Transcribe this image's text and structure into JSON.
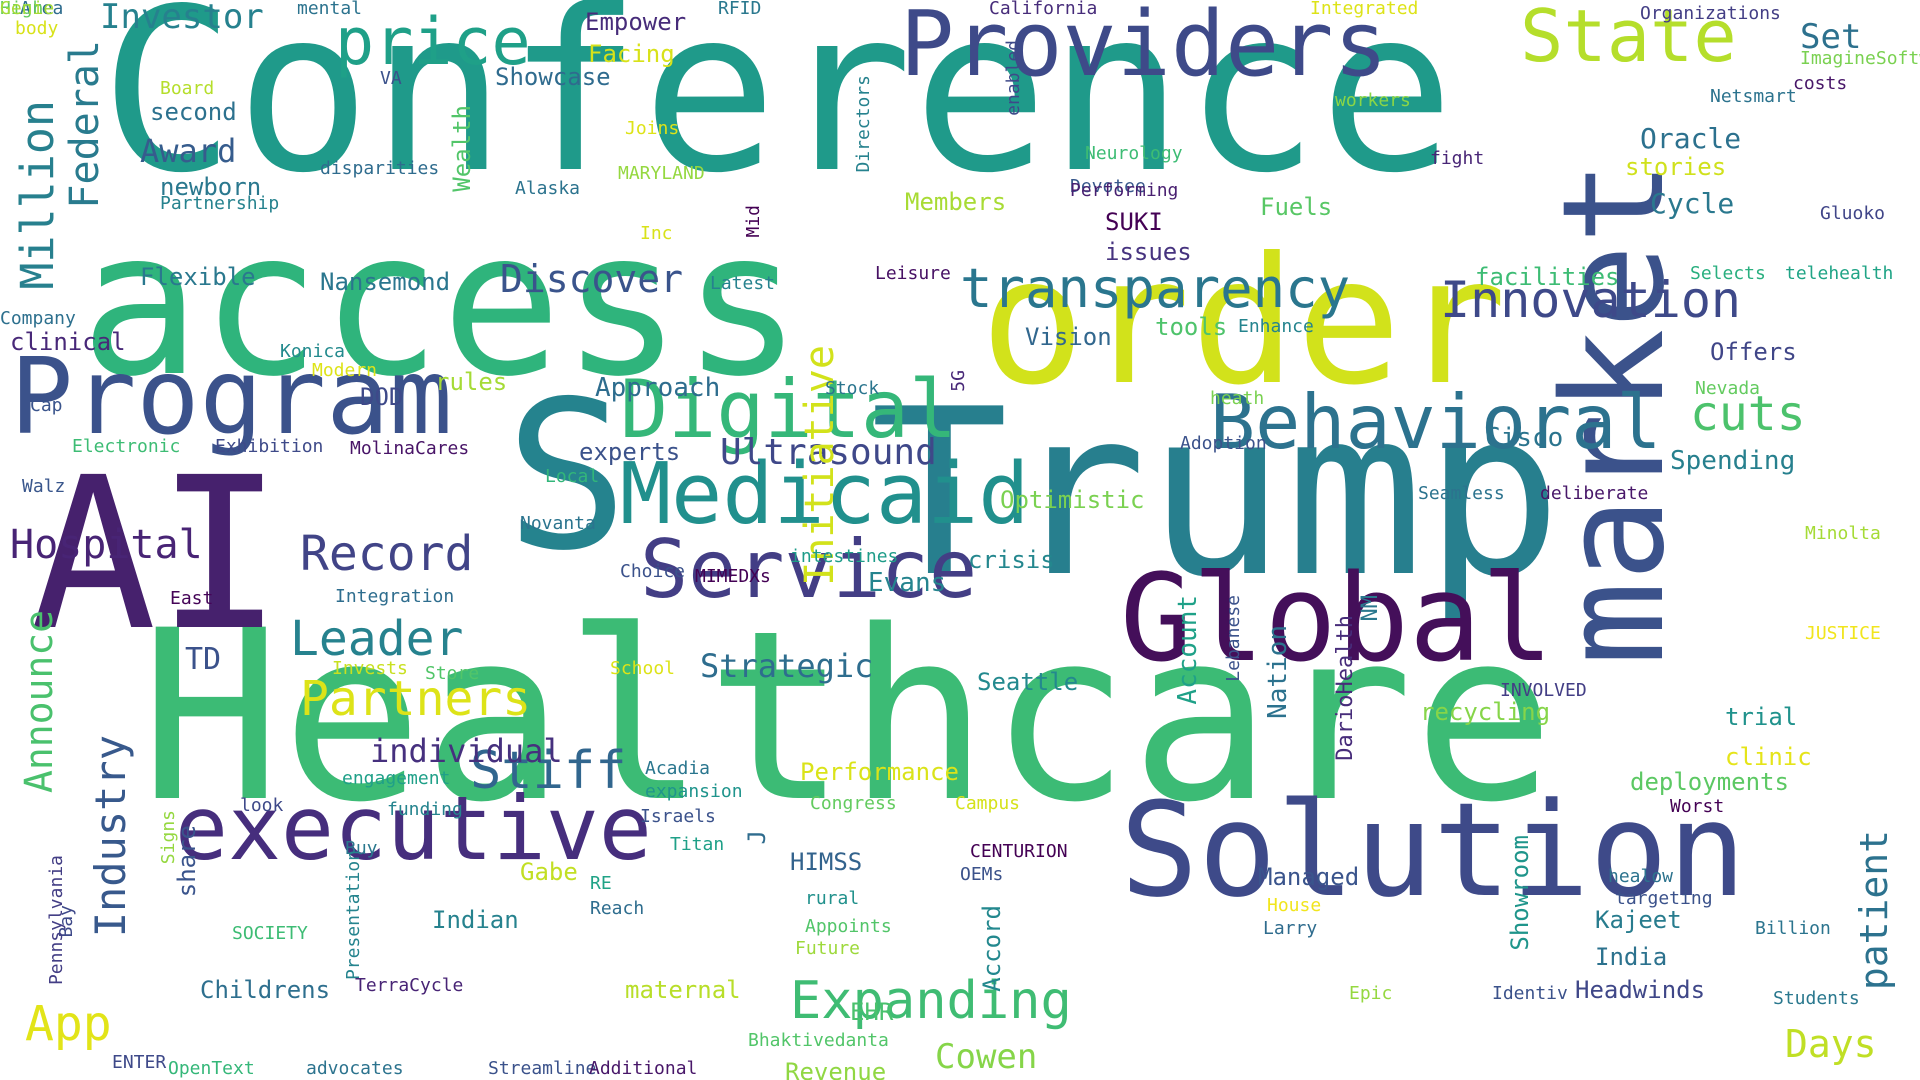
{
  "words": [
    {
      "text": "Conference",
      "color": "#1f9a8a"
    },
    {
      "text": "Healthcare",
      "color": "#3cbb75"
    },
    {
      "text": "Trump",
      "color": "#277f8e"
    },
    {
      "text": "access",
      "color": "#2fb47c"
    },
    {
      "text": "order",
      "color": "#d2e21b"
    },
    {
      "text": "AI",
      "color": "#46216d"
    },
    {
      "text": "S",
      "color": "#25838e"
    },
    {
      "text": "market",
      "color": "#3b528b"
    },
    {
      "text": "Solution",
      "color": "#3e4a89"
    },
    {
      "text": "Global",
      "color": "#440f5a"
    },
    {
      "text": "Program",
      "color": "#3b528b"
    },
    {
      "text": "Providers",
      "color": "#3e4a89"
    },
    {
      "text": "executive",
      "color": "#462e7d"
    },
    {
      "text": "Medicaid",
      "color": "#21908d"
    },
    {
      "text": "Service",
      "color": "#433e85"
    },
    {
      "text": "Digital",
      "color": "#35b779"
    },
    {
      "text": "Behavioral",
      "color": "#2c728e"
    },
    {
      "text": "State",
      "color": "#b5de2b"
    },
    {
      "text": "price",
      "color": "#1fa088"
    },
    {
      "text": "transparency",
      "color": "#2a768e"
    },
    {
      "text": "Innovation",
      "color": "#3e4989"
    },
    {
      "text": "Million",
      "color": "#27808e"
    },
    {
      "text": "Federal",
      "color": "#297b8e"
    },
    {
      "text": "Record",
      "color": "#414487"
    },
    {
      "text": "Leader",
      "color": "#26828e"
    },
    {
      "text": "Partners",
      "color": "#dde318"
    },
    {
      "text": "Expanding",
      "color": "#3fbc73"
    },
    {
      "text": "Industry",
      "color": "#38598c"
    },
    {
      "text": "Announce",
      "color": "#4ac16d"
    },
    {
      "text": "patient",
      "color": "#2c728e"
    },
    {
      "text": "Stiff",
      "color": "#31668e"
    },
    {
      "text": "Hospital",
      "color": "#482475"
    },
    {
      "text": "cuts",
      "color": "#4cc26c"
    },
    {
      "text": "Ultrasound",
      "color": "#3f4889"
    },
    {
      "text": "App",
      "color": "#e2e418"
    },
    {
      "text": "Cowen",
      "color": "#86d549"
    },
    {
      "text": "Days",
      "color": "#c0df25"
    },
    {
      "text": "Discover",
      "color": "#3a548c"
    },
    {
      "text": "Strategic",
      "color": "#2e6d8e"
    },
    {
      "text": "individual",
      "color": "#46307e"
    },
    {
      "text": "Initiative",
      "color": "#d2e21b"
    },
    {
      "text": "Investor",
      "color": "#26818e"
    },
    {
      "text": "Award",
      "color": "#365c8d"
    },
    {
      "text": "Set",
      "color": "#2d718e"
    },
    {
      "text": "Oracle",
      "color": "#2c718e"
    },
    {
      "text": "Cycle",
      "color": "#2a788e"
    },
    {
      "text": "Performance",
      "color": "#dae319"
    },
    {
      "text": "Members",
      "color": "#a8db34"
    },
    {
      "text": "Fuels",
      "color": "#58c765"
    },
    {
      "text": "Approach",
      "color": "#2e6d8e"
    },
    {
      "text": "Spending",
      "color": "#27808e"
    },
    {
      "text": "Offers",
      "color": "#404688"
    },
    {
      "text": "Cisco",
      "color": "#2b748e"
    },
    {
      "text": "Evans",
      "color": "#25848e"
    },
    {
      "text": "crisis",
      "color": "#24878e"
    },
    {
      "text": "Seattle",
      "color": "#23898e"
    },
    {
      "text": "experts",
      "color": "#3b528b"
    },
    {
      "text": "Optimistic",
      "color": "#7ad151"
    },
    {
      "text": "Headwinds",
      "color": "#3f4788"
    },
    {
      "text": "India",
      "color": "#2c728e"
    },
    {
      "text": "Kajeet",
      "color": "#287c8e"
    },
    {
      "text": "trial",
      "color": "#20928c"
    },
    {
      "text": "clinic",
      "color": "#e5e419"
    },
    {
      "text": "deployments",
      "color": "#5cc863"
    },
    {
      "text": "Managed",
      "color": "#3a548c"
    },
    {
      "text": "Indian",
      "color": "#26828e"
    },
    {
      "text": "maternal",
      "color": "#b8de29"
    },
    {
      "text": "recycling",
      "color": "#86d549"
    },
    {
      "text": "facilities",
      "color": "#3dbc74"
    },
    {
      "text": "stories",
      "color": "#d0e11c"
    },
    {
      "text": "TD",
      "color": "#3b528b"
    },
    {
      "text": "Gabe",
      "color": "#c2df23"
    },
    {
      "text": "Account",
      "color": "#1fa188"
    },
    {
      "text": "Nation",
      "color": "#2c728e"
    },
    {
      "text": "HIMSS",
      "color": "#33638d"
    },
    {
      "text": "Childrens",
      "color": "#2e6f8e"
    },
    {
      "text": "Revenue",
      "color": "#90d743"
    },
    {
      "text": "EHR",
      "color": "#4ac16d"
    },
    {
      "text": "Nansemond",
      "color": "#2a768e"
    },
    {
      "text": "Flexible",
      "color": "#2a788e"
    },
    {
      "text": "second",
      "color": "#2c718e"
    },
    {
      "text": "newborn",
      "color": "#2a788e"
    },
    {
      "text": "clinical",
      "color": "#482878"
    },
    {
      "text": "Showcase",
      "color": "#2f6b8e"
    },
    {
      "text": "Empower",
      "color": "#472c7a"
    },
    {
      "text": "Facing",
      "color": "#d8e219"
    },
    {
      "text": "Joins",
      "color": "#dde318"
    },
    {
      "text": "rules",
      "color": "#a5db36"
    },
    {
      "text": "tools",
      "color": "#4ec36b"
    },
    {
      "text": "Vision",
      "color": "#31678e"
    },
    {
      "text": "SUKI",
      "color": "#440154"
    },
    {
      "text": "issues",
      "color": "#46337f"
    },
    {
      "text": "Neurology",
      "color": "#3dbc74"
    },
    {
      "text": "Devotee",
      "color": "#38588c"
    },
    {
      "text": "Performing",
      "color": "#481f70"
    },
    {
      "text": "fight",
      "color": "#482576"
    },
    {
      "text": "Gluoko",
      "color": "#404588"
    },
    {
      "text": "Selects",
      "color": "#29af7f"
    },
    {
      "text": "telehealth",
      "color": "#20a486"
    },
    {
      "text": "DOD",
      "color": "#3e4989"
    },
    {
      "text": "Stock",
      "color": "#2b758e"
    },
    {
      "text": "5G",
      "color": "#482878"
    },
    {
      "text": "Adoption",
      "color": "#3b528b"
    },
    {
      "text": "heath",
      "color": "#7ad151"
    },
    {
      "text": "Nevada",
      "color": "#63cb5f"
    },
    {
      "text": "Seamless",
      "color": "#2c738e"
    },
    {
      "text": "deliberate",
      "color": "#481769"
    },
    {
      "text": "Minolta",
      "color": "#a5db36"
    },
    {
      "text": "JUSTICE",
      "color": "#f1e51d"
    },
    {
      "text": "Latest",
      "color": "#26828e"
    },
    {
      "text": "Leisure",
      "color": "#471164"
    },
    {
      "text": "Enhance",
      "color": "#25848e"
    },
    {
      "text": "Konica",
      "color": "#238a8d"
    },
    {
      "text": "Modern",
      "color": "#dde318"
    },
    {
      "text": "Cap",
      "color": "#3a548c"
    },
    {
      "text": "Company",
      "color": "#2d708e"
    },
    {
      "text": "Electronic",
      "color": "#3dbc74"
    },
    {
      "text": "Exhibition",
      "color": "#3e4a89"
    },
    {
      "text": "MolinaCares",
      "color": "#481467"
    },
    {
      "text": "Local",
      "color": "#32b67a"
    },
    {
      "text": "Walz",
      "color": "#39568c"
    },
    {
      "text": "Novanta",
      "color": "#2b748e"
    },
    {
      "text": "intestines",
      "color": "#1e9c89"
    },
    {
      "text": "Choice",
      "color": "#3b528b"
    },
    {
      "text": "MIMEDXs",
      "color": "#440154"
    },
    {
      "text": "Integration",
      "color": "#2e6d8e"
    },
    {
      "text": "East",
      "color": "#450457"
    },
    {
      "text": "Invests",
      "color": "#c8e020"
    },
    {
      "text": "Store",
      "color": "#52c569"
    },
    {
      "text": "School",
      "color": "#dde318"
    },
    {
      "text": "Acadia",
      "color": "#2a768e"
    },
    {
      "text": "expansion",
      "color": "#1f948c"
    },
    {
      "text": "Israels",
      "color": "#3b528b"
    },
    {
      "text": "Titan",
      "color": "#1fa088"
    },
    {
      "text": "J",
      "color": "#2f6c8e"
    },
    {
      "text": "Congress",
      "color": "#63cb5f"
    },
    {
      "text": "Campus",
      "color": "#d5e21a"
    },
    {
      "text": "engagement",
      "color": "#1fa088"
    },
    {
      "text": "funding",
      "color": "#25848e"
    },
    {
      "text": "look",
      "color": "#3e4989"
    },
    {
      "text": "Buy",
      "color": "#2a788e"
    },
    {
      "text": "RE",
      "color": "#20a386"
    },
    {
      "text": "rural",
      "color": "#21918c"
    },
    {
      "text": "Appoints",
      "color": "#52c569"
    },
    {
      "text": "Future",
      "color": "#9dd93b"
    },
    {
      "text": "CENTURION",
      "color": "#440154"
    },
    {
      "text": "OEMs",
      "color": "#3b528b"
    },
    {
      "text": "Accord",
      "color": "#23888e"
    },
    {
      "text": "House",
      "color": "#f1e51d"
    },
    {
      "text": "Larry",
      "color": "#2f6c8e"
    },
    {
      "text": "Showroom",
      "color": "#1f958b"
    },
    {
      "text": "healow",
      "color": "#2c738e"
    },
    {
      "text": "targeting",
      "color": "#3b528b"
    },
    {
      "text": "Billion",
      "color": "#2b748e"
    },
    {
      "text": "Worst",
      "color": "#440154"
    },
    {
      "text": "INVOLVED",
      "color": "#433e85"
    },
    {
      "text": "DarioHealth",
      "color": "#472c7a"
    },
    {
      "text": "NM",
      "color": "#2a788e"
    },
    {
      "text": "Lebanese",
      "color": "#3b528b"
    },
    {
      "text": "Presentation",
      "color": "#25848e"
    },
    {
      "text": "SOCIETY",
      "color": "#3dbc74"
    },
    {
      "text": "Reach",
      "color": "#2e6d8e"
    },
    {
      "text": "Signs",
      "color": "#95d840"
    },
    {
      "text": "Bay",
      "color": "#3e4989"
    },
    {
      "text": "Pennsylvania",
      "color": "#433e85"
    },
    {
      "text": "share",
      "color": "#3a548c"
    },
    {
      "text": "TerraCycle",
      "color": "#482475"
    },
    {
      "text": "OpenText",
      "color": "#35b779"
    },
    {
      "text": "advocates",
      "color": "#2c738e"
    },
    {
      "text": "Streamline",
      "color": "#3b528b"
    },
    {
      "text": "Additional",
      "color": "#481769"
    },
    {
      "text": "ENTER",
      "color": "#3e4989"
    },
    {
      "text": "Bhaktivedanta",
      "color": "#52c569"
    },
    {
      "text": "Epic",
      "color": "#95d840"
    },
    {
      "text": "Identiv",
      "color": "#3b528b"
    },
    {
      "text": "Students",
      "color": "#2a788e"
    },
    {
      "text": "Area",
      "color": "#2f6c8e"
    },
    {
      "text": "body",
      "color": "#d8e219"
    },
    {
      "text": "mental",
      "color": "#2c738e"
    },
    {
      "text": "RFID",
      "color": "#2a788e"
    },
    {
      "text": "California",
      "color": "#472c7a"
    },
    {
      "text": "Integrated",
      "color": "#dde318"
    },
    {
      "text": "Organizations",
      "color": "#433e85"
    },
    {
      "text": "ImagineSoftware",
      "color": "#7ad151"
    },
    {
      "text": "costs",
      "color": "#481769"
    },
    {
      "text": "Netsmart",
      "color": "#2c738e"
    },
    {
      "text": "workers",
      "color": "#8bd646"
    },
    {
      "text": "Board",
      "color": "#b5de2b"
    },
    {
      "text": "VA",
      "color": "#3b528b"
    },
    {
      "text": "Directors",
      "color": "#26828e"
    },
    {
      "text": "enabled",
      "color": "#3e4989"
    },
    {
      "text": "Wealth",
      "color": "#52c569"
    },
    {
      "text": "disparities",
      "color": "#2f6c8e"
    },
    {
      "text": "Partnership",
      "color": "#26828e"
    },
    {
      "text": "Alaska",
      "color": "#2c738e"
    },
    {
      "text": "MARYLAND",
      "color": "#95d840"
    },
    {
      "text": "Inc",
      "color": "#d8e219"
    },
    {
      "text": "Mid",
      "color": "#440154"
    },
    {
      "text": "High",
      "color": "#63cb5f"
    },
    {
      "text": "Genie",
      "color": "#a5db36"
    }
  ]
}
